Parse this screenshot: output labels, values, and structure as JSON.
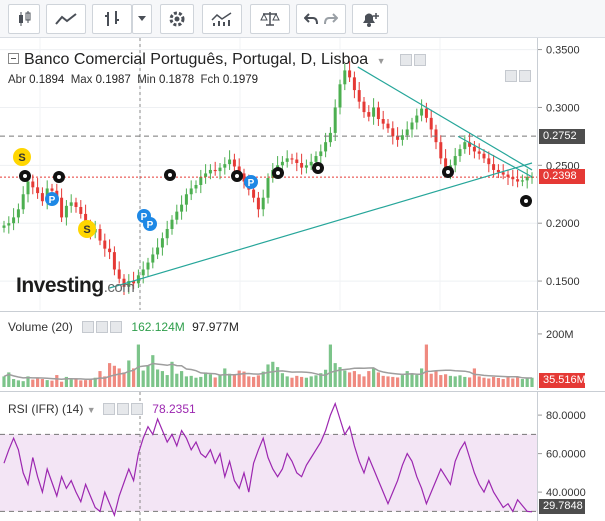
{
  "toolbar": {
    "buttons": [
      "candles-icon",
      "area-chart-icon",
      "bars-icon",
      "chevron-down-icon",
      "gear-icon",
      "indicators-icon",
      "scale-icon",
      "undo-icon",
      "redo-icon",
      "alert-icon"
    ]
  },
  "header": {
    "title": "Banco Comercial Português, Portugal, D, Lisboa",
    "open_label": "Abr",
    "open": "0.1894",
    "high_label": "Max",
    "high": "0.1987",
    "low_label": "Min",
    "low": "0.1878",
    "close_label": "Fch",
    "close": "0.1979"
  },
  "price_axis": {
    "ticks": [
      "0.3500",
      "0.3000",
      "0.2500",
      "0.2000",
      "0.1500"
    ],
    "resistance_tag": "0.2752",
    "last_price_tag": "0.2398"
  },
  "volume": {
    "legend": "Volume (20)",
    "value1": "162.124M",
    "value2": "97.977M",
    "axis_tick": "200M",
    "last_tag": "35.516M"
  },
  "rsi": {
    "legend": "RSI (IFR) (14)",
    "value": "78.2351",
    "ticks": [
      "80.0000",
      "60.0000",
      "40.0000"
    ],
    "last_tag": "29.7848"
  },
  "logo": {
    "main": "Investing",
    "suffix": ".com"
  },
  "markers": {
    "split": "S",
    "p": "P"
  },
  "colors": {
    "up": "#4caf50",
    "down": "#e53935",
    "trend": "#26a69a",
    "rsi": "#9c27b0",
    "band": "#f3e5f5",
    "last": "#e53935",
    "marker_yellow": "#ffd600",
    "marker_blue": "#1e88e5"
  },
  "chart_data": [
    {
      "type": "candlestick",
      "ylim": [
        0.125,
        0.36
      ],
      "ticks": [
        0.35,
        0.3,
        0.25,
        0.2,
        0.15
      ],
      "close_series": [
        0.198,
        0.2,
        0.205,
        0.212,
        0.225,
        0.236,
        0.231,
        0.226,
        0.219,
        0.23,
        0.228,
        0.222,
        0.205,
        0.215,
        0.218,
        0.214,
        0.208,
        0.198,
        0.192,
        0.195,
        0.185,
        0.178,
        0.175,
        0.16,
        0.152,
        0.145,
        0.15,
        0.148,
        0.155,
        0.16,
        0.166,
        0.173,
        0.179,
        0.187,
        0.195,
        0.203,
        0.21,
        0.216,
        0.225,
        0.23,
        0.233,
        0.24,
        0.243,
        0.246,
        0.245,
        0.248,
        0.251,
        0.255,
        0.249,
        0.243,
        0.236,
        0.229,
        0.222,
        0.212,
        0.222,
        0.239,
        0.246,
        0.25,
        0.253,
        0.256,
        0.255,
        0.252,
        0.248,
        0.25,
        0.253,
        0.258,
        0.262,
        0.27,
        0.278,
        0.3,
        0.32,
        0.332,
        0.326,
        0.315,
        0.305,
        0.296,
        0.292,
        0.3,
        0.29,
        0.286,
        0.282,
        0.275,
        0.272,
        0.276,
        0.281,
        0.287,
        0.293,
        0.299,
        0.291,
        0.281,
        0.27,
        0.256,
        0.245,
        0.25,
        0.258,
        0.264,
        0.27,
        0.266,
        0.262,
        0.26,
        0.256,
        0.251,
        0.246,
        0.244,
        0.242,
        0.24,
        0.238,
        0.236,
        0.237,
        0.24,
        0.24
      ],
      "resistance": 0.2752,
      "last_price": 0.2398,
      "trendlines": [
        {
          "x0": 0.2,
          "y0": 0.144,
          "x1": 1.0,
          "y1": 0.252
        },
        {
          "x0": 0.67,
          "y0": 0.335,
          "x1": 1.0,
          "y1": 0.246
        },
        {
          "x0": 0.86,
          "y0": 0.275,
          "x1": 1.0,
          "y1": 0.24
        }
      ]
    },
    {
      "type": "bar",
      "name": "Volume",
      "ylim": [
        0,
        260
      ],
      "values": [
        40,
        55,
        30,
        25,
        22,
        40,
        28,
        35,
        30,
        26,
        24,
        45,
        20,
        38,
        28,
        33,
        25,
        26,
        30,
        35,
        60,
        40,
        90,
        80,
        70,
        55,
        100,
        70,
        160,
        62,
        80,
        120,
        66,
        60,
        45,
        95,
        50,
        60,
        40,
        42,
        35,
        38,
        55,
        48,
        36,
        44,
        70,
        50,
        45,
        62,
        58,
        40,
        38,
        44,
        58,
        85,
        95,
        75,
        52,
        40,
        35,
        42,
        38,
        35,
        40,
        44,
        52,
        65,
        160,
        90,
        75,
        62,
        55,
        60,
        48,
        40,
        60,
        70,
        55,
        42,
        40,
        38,
        36,
        45,
        60,
        50,
        45,
        70,
        160,
        50,
        60,
        45,
        48,
        42,
        40,
        44,
        38,
        36,
        70,
        40,
        35,
        32,
        38,
        34,
        30,
        36,
        32,
        38,
        30,
        36,
        35
      ],
      "ma_last": 35.516
    },
    {
      "type": "line",
      "name": "RSI",
      "ylim": [
        25,
        92
      ],
      "bands": [
        30,
        70
      ],
      "values": [
        55,
        62,
        68,
        62,
        50,
        44,
        58,
        48,
        40,
        52,
        45,
        38,
        48,
        42,
        46,
        40,
        35,
        44,
        38,
        32,
        30,
        40,
        34,
        28,
        38,
        45,
        52,
        46,
        60,
        68,
        74,
        70,
        78,
        72,
        66,
        70,
        64,
        72,
        68,
        62,
        66,
        60,
        58,
        62,
        55,
        60,
        48,
        56,
        46,
        42,
        50,
        40,
        55,
        62,
        68,
        58,
        52,
        48,
        52,
        60,
        56,
        50,
        48,
        54,
        58,
        62,
        66,
        72,
        80,
        86,
        78,
        70,
        74,
        64,
        56,
        50,
        58,
        52,
        46,
        40,
        34,
        40,
        46,
        54,
        60,
        56,
        48,
        42,
        34,
        40,
        46,
        52,
        48,
        44,
        56,
        62,
        66,
        58,
        50,
        44,
        40,
        46,
        40,
        36,
        32,
        34,
        30,
        36,
        33,
        30,
        29.78
      ]
    }
  ]
}
